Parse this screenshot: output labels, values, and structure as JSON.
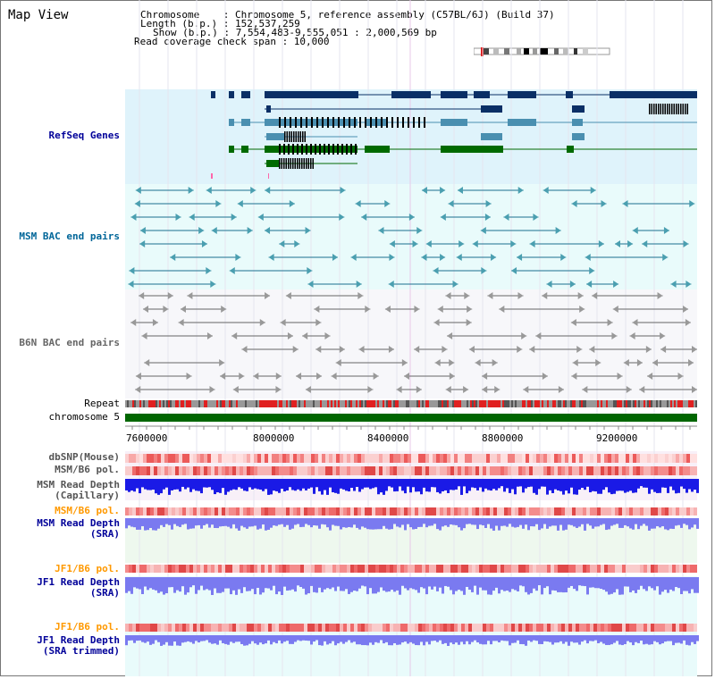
{
  "map_title": "Map View",
  "info": {
    "chromosome_line": "Chromosome    : Chromosome 5, reference assembly (C57BL/6J) (Build 37)",
    "length_line": "Length (b.p.) : 152,537,259",
    "show_line": "Show (b.p.) : 7,554,483-9,555,051 : 2,000,569 bp",
    "coverage_line": "Read coverage check span : 10,000"
  },
  "tracks": {
    "refseq": {
      "label": "RefSeq Genes",
      "color": "#000099"
    },
    "msm_bac": {
      "label": "MSM BAC end pairs",
      "color": "#006699"
    },
    "b6n_bac": {
      "label": "B6N BAC end pairs",
      "color": "#666666"
    },
    "repeat": {
      "label": "Repeat"
    },
    "chromosome": {
      "label": "chromosome 5",
      "color": "#006600"
    },
    "dbsnp": {
      "label": "dbSNP(Mouse)"
    },
    "msm_b6_pol": {
      "label": "MSM/B6 pol."
    },
    "msm_depth_cap": {
      "label": "MSM Read Depth\n(Capillary)",
      "color": "#000099"
    },
    "msm_b6_pol2": {
      "label": "MSM/B6 pol.",
      "color": "#ff9900"
    },
    "msm_depth_sra": {
      "label": "MSM Read Depth\n(SRA)",
      "color": "#000099"
    },
    "jf1_b6_pol": {
      "label": "JF1/B6 pol.",
      "color": "#ff9900"
    },
    "jf1_depth_sra": {
      "label": "JF1 Read Depth\n(SRA)",
      "color": "#000099"
    },
    "jf1_b6_pol2": {
      "label": "JF1/B6 pol.",
      "color": "#ff9900"
    },
    "jf1_depth_trim": {
      "label": "JF1 Read Depth\n(SRA trimmed)",
      "color": "#000099"
    }
  },
  "axis": {
    "ticks": [
      "7600000",
      "8000000",
      "8400000",
      "8800000",
      "9200000"
    ]
  },
  "colors": {
    "refseq_bg": "#dff3fb",
    "msm_bg": "#e9fbfb",
    "gene_dark": "#0a2f66",
    "gene_mid": "#4a8fb0",
    "gene_green": "#006a00",
    "repeat_red": "#e02020",
    "depth_blue": "#1a1ae6",
    "depth_violet": "#7a7af0"
  }
}
